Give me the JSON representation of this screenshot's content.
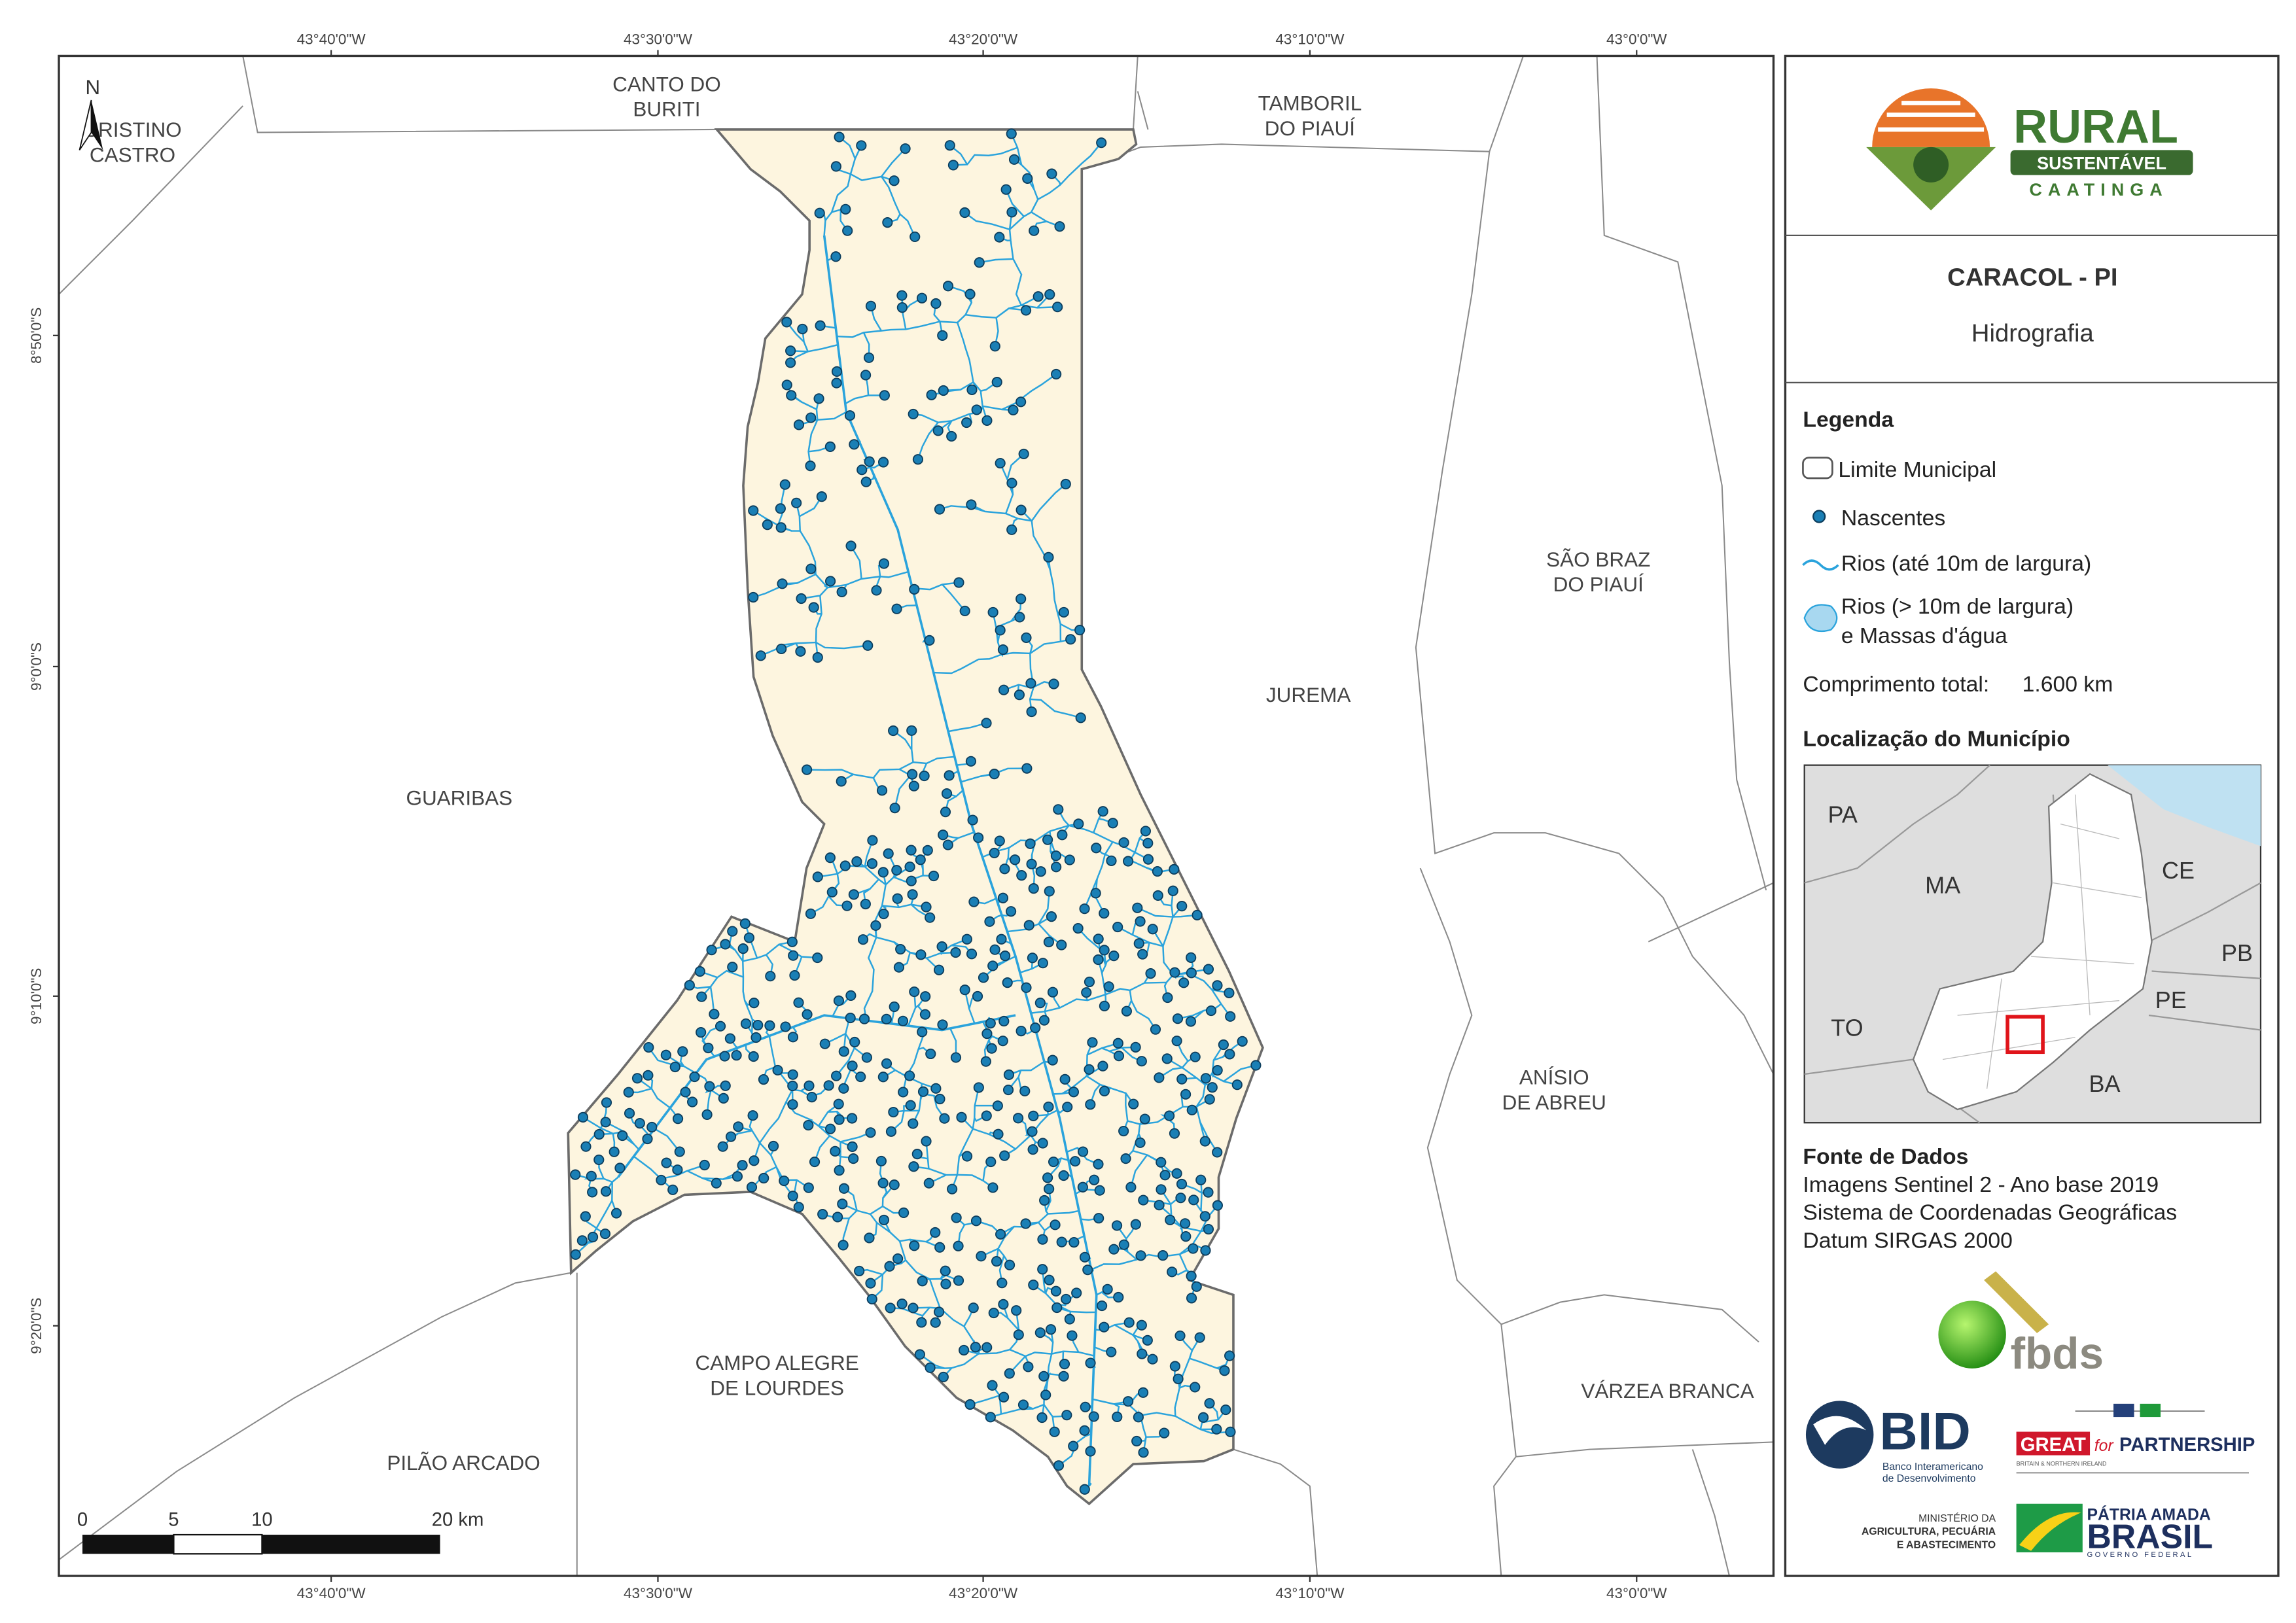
{
  "map": {
    "longitude_labels": [
      "43°40'0\"W",
      "43°30'0\"W",
      "43°20'0\"W",
      "43°10'0\"W",
      "43°0'0\"W"
    ],
    "latitude_labels": [
      "8°50'0\"S",
      "9°0'0\"S",
      "9°10'0\"S",
      "9°20'0\"S"
    ],
    "north_arrow": "N",
    "places": [
      {
        "lines": [
          "CRISTINO",
          "CASTRO"
        ]
      },
      {
        "lines": [
          "CANTO DO",
          "BURITI"
        ]
      },
      {
        "lines": [
          "TAMBORIL",
          "DO PIAUÍ"
        ]
      },
      {
        "lines": [
          "SÃO BRAZ",
          "DO PIAUÍ"
        ]
      },
      {
        "lines": [
          "JUREMA"
        ]
      },
      {
        "lines": [
          "GUARIBAS"
        ]
      },
      {
        "lines": [
          "ANÍSIO",
          "DE ABREU"
        ]
      },
      {
        "lines": [
          "CAMPO ALEGRE",
          "DE LOURDES"
        ]
      },
      {
        "lines": [
          "VÁRZEA BRANCA"
        ]
      },
      {
        "lines": [
          "PILÃO ARCADO"
        ]
      }
    ],
    "scale_bar": [
      "0",
      "5",
      "10",
      "20 km"
    ]
  },
  "panel": {
    "logo": {
      "title": "RURAL",
      "badge": "SUSTENTÁVEL",
      "subtitle": "CAATINGA"
    },
    "municipality": "CARACOL - PI",
    "theme": "Hidrografia",
    "legend": {
      "title": "Legenda",
      "items": [
        {
          "lines": [
            "Limite Municipal"
          ]
        },
        {
          "lines": [
            "Nascentes"
          ]
        },
        {
          "lines": [
            "Rios (até 10m de largura)"
          ]
        },
        {
          "lines": [
            "Rios (> 10m de largura)",
            "e Massas d'água"
          ]
        }
      ]
    },
    "total_length": {
      "label": "Comprimento total:",
      "value": "1.600 km"
    },
    "location": {
      "title": "Localização do Município",
      "states": [
        "PA",
        "MA",
        "CE",
        "PB",
        "PE",
        "TO",
        "BA"
      ]
    },
    "sources": {
      "title": "Fonte de Dados",
      "lines": [
        "Imagens Sentinel 2 - Ano base 2019",
        "Sistema de Coordenadas Geográficas",
        "Datum SIRGAS 2000"
      ]
    },
    "logos": {
      "fbds": "fbds",
      "bid": "BID",
      "bid_sub": [
        "Banco Interamericano",
        "de Desenvolvimento"
      ],
      "great": [
        "GREAT",
        "for",
        "PARTNERSHIP"
      ],
      "great_sub": "BRITAIN & NORTHERN IRELAND",
      "ministry": [
        "MINISTÉRIO DA",
        "AGRICULTURA, PECUÁRIA",
        "E ABASTECIMENTO"
      ],
      "brasil": [
        "PÁTRIA AMADA",
        "BRASIL",
        "GOVERNO FEDERAL"
      ]
    }
  }
}
